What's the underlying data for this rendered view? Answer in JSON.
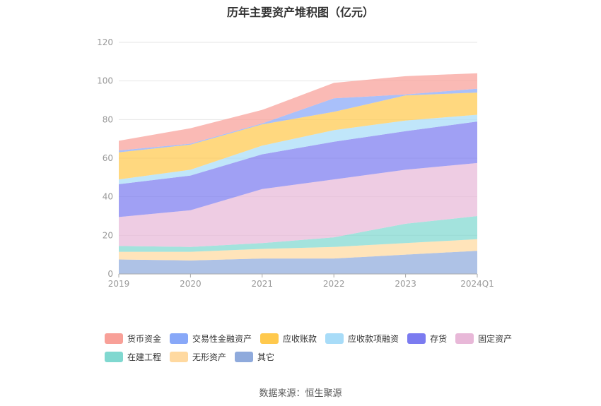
{
  "chart_data": {
    "type": "area",
    "stacked": true,
    "title": "历年主要资产堆积图（亿元）",
    "categories": [
      "2019",
      "2020",
      "2021",
      "2022",
      "2023",
      "2024Q1"
    ],
    "ylim": [
      0,
      120
    ],
    "yticks": [
      0,
      20,
      40,
      60,
      80,
      100,
      120
    ],
    "grid": true,
    "legend_position": "bottom",
    "series": [
      {
        "name": "其它",
        "color": "#8faadc",
        "values": [
          7.5,
          7,
          8,
          8,
          10,
          12
        ]
      },
      {
        "name": "无形资产",
        "color": "#ffd9a0",
        "values": [
          4,
          4.5,
          5,
          6,
          6,
          6
        ]
      },
      {
        "name": "在建工程",
        "color": "#80d8d0",
        "values": [
          3,
          2.5,
          3,
          5,
          10,
          12
        ]
      },
      {
        "name": "固定资产",
        "color": "#e8b8d8",
        "values": [
          15,
          19,
          28,
          30,
          28,
          27.5
        ]
      },
      {
        "name": "存货",
        "color": "#7b7bf0",
        "values": [
          17,
          18,
          18,
          19.5,
          20,
          21.5
        ]
      },
      {
        "name": "应收款项融资",
        "color": "#a8dcf8",
        "values": [
          2.5,
          3,
          4.5,
          6,
          5.5,
          3.5
        ]
      },
      {
        "name": "应收账款",
        "color": "#ffc94d",
        "values": [
          14,
          13,
          11,
          9.5,
          13,
          11.5
        ]
      },
      {
        "name": "交易性金融资产",
        "color": "#88a8f8",
        "values": [
          1,
          0.5,
          0.5,
          7,
          0.5,
          2
        ]
      },
      {
        "name": "货币资金",
        "color": "#f8a098",
        "values": [
          5,
          8,
          7,
          8,
          9.5,
          8
        ]
      }
    ]
  },
  "source": "数据来源：恒生聚源"
}
